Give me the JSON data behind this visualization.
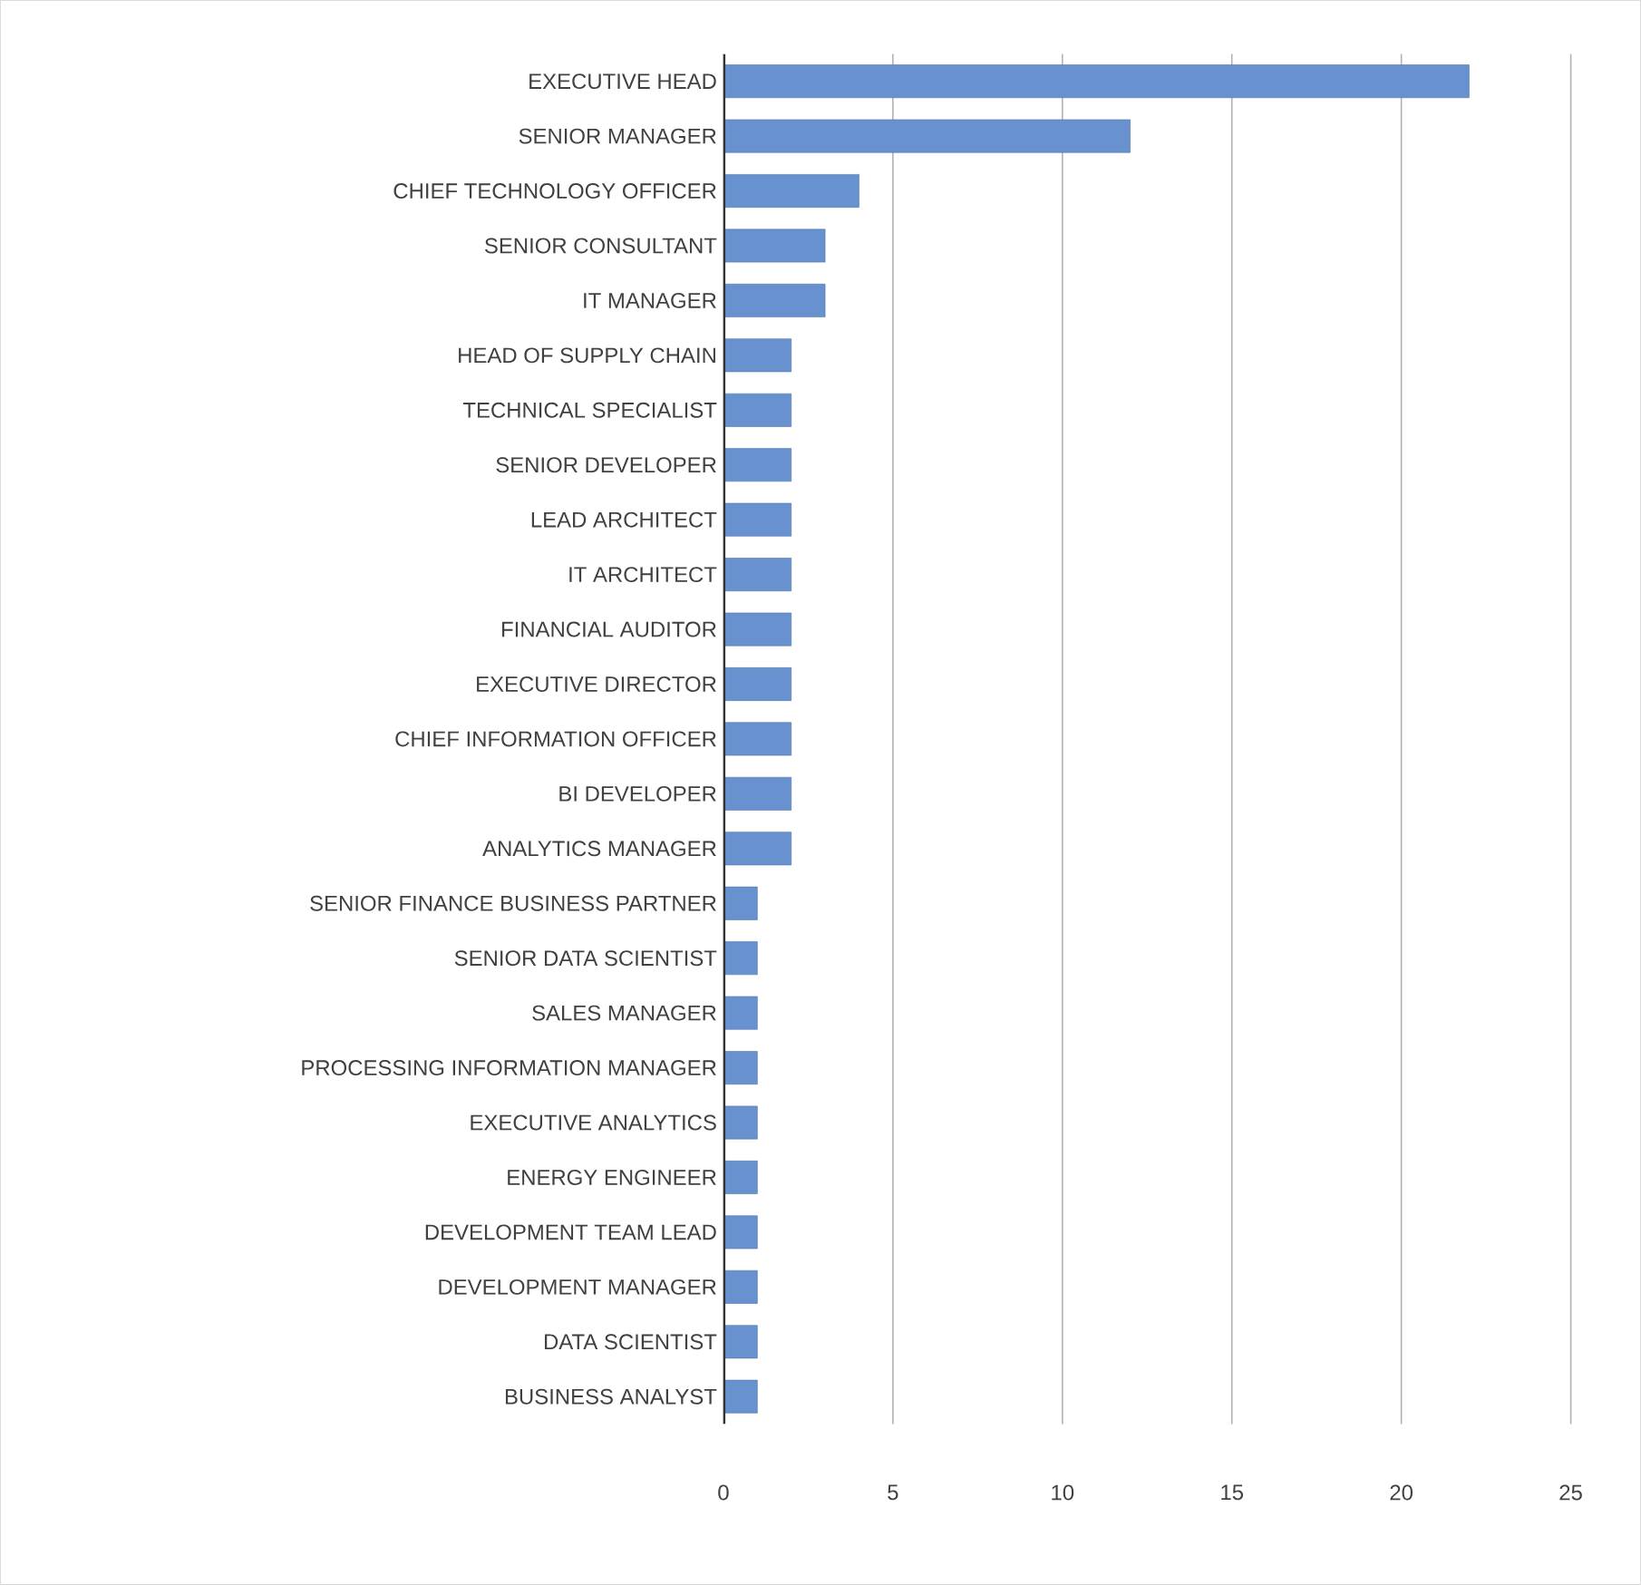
{
  "chart_data": {
    "type": "bar",
    "orientation": "horizontal",
    "categories": [
      "EXECUTIVE HEAD",
      "SENIOR MANAGER",
      "CHIEF TECHNOLOGY OFFICER",
      "SENIOR CONSULTANT",
      "IT MANAGER",
      "HEAD OF SUPPLY CHAIN",
      "TECHNICAL SPECIALIST",
      "SENIOR DEVELOPER",
      "LEAD ARCHITECT",
      "IT ARCHITECT",
      "FINANCIAL AUDITOR",
      "EXECUTIVE DIRECTOR",
      "CHIEF INFORMATION OFFICER",
      "BI DEVELOPER",
      "ANALYTICS MANAGER",
      "SENIOR FINANCE BUSINESS PARTNER",
      "SENIOR DATA SCIENTIST",
      "SALES MANAGER",
      "PROCESSING INFORMATION MANAGER",
      "EXECUTIVE ANALYTICS",
      "ENERGY ENGINEER",
      "DEVELOPMENT TEAM LEAD",
      "DEVELOPMENT MANAGER",
      "DATA SCIENTIST",
      "BUSINESS ANALYST"
    ],
    "values": [
      22,
      12,
      4,
      3,
      3,
      2,
      2,
      2,
      2,
      2,
      2,
      2,
      2,
      2,
      2,
      1,
      1,
      1,
      1,
      1,
      1,
      1,
      1,
      1,
      1
    ],
    "color": "#6792cf",
    "xlim": [
      0,
      25
    ],
    "xticks": [
      0,
      5,
      10,
      15,
      20,
      25
    ],
    "grid": "x"
  }
}
